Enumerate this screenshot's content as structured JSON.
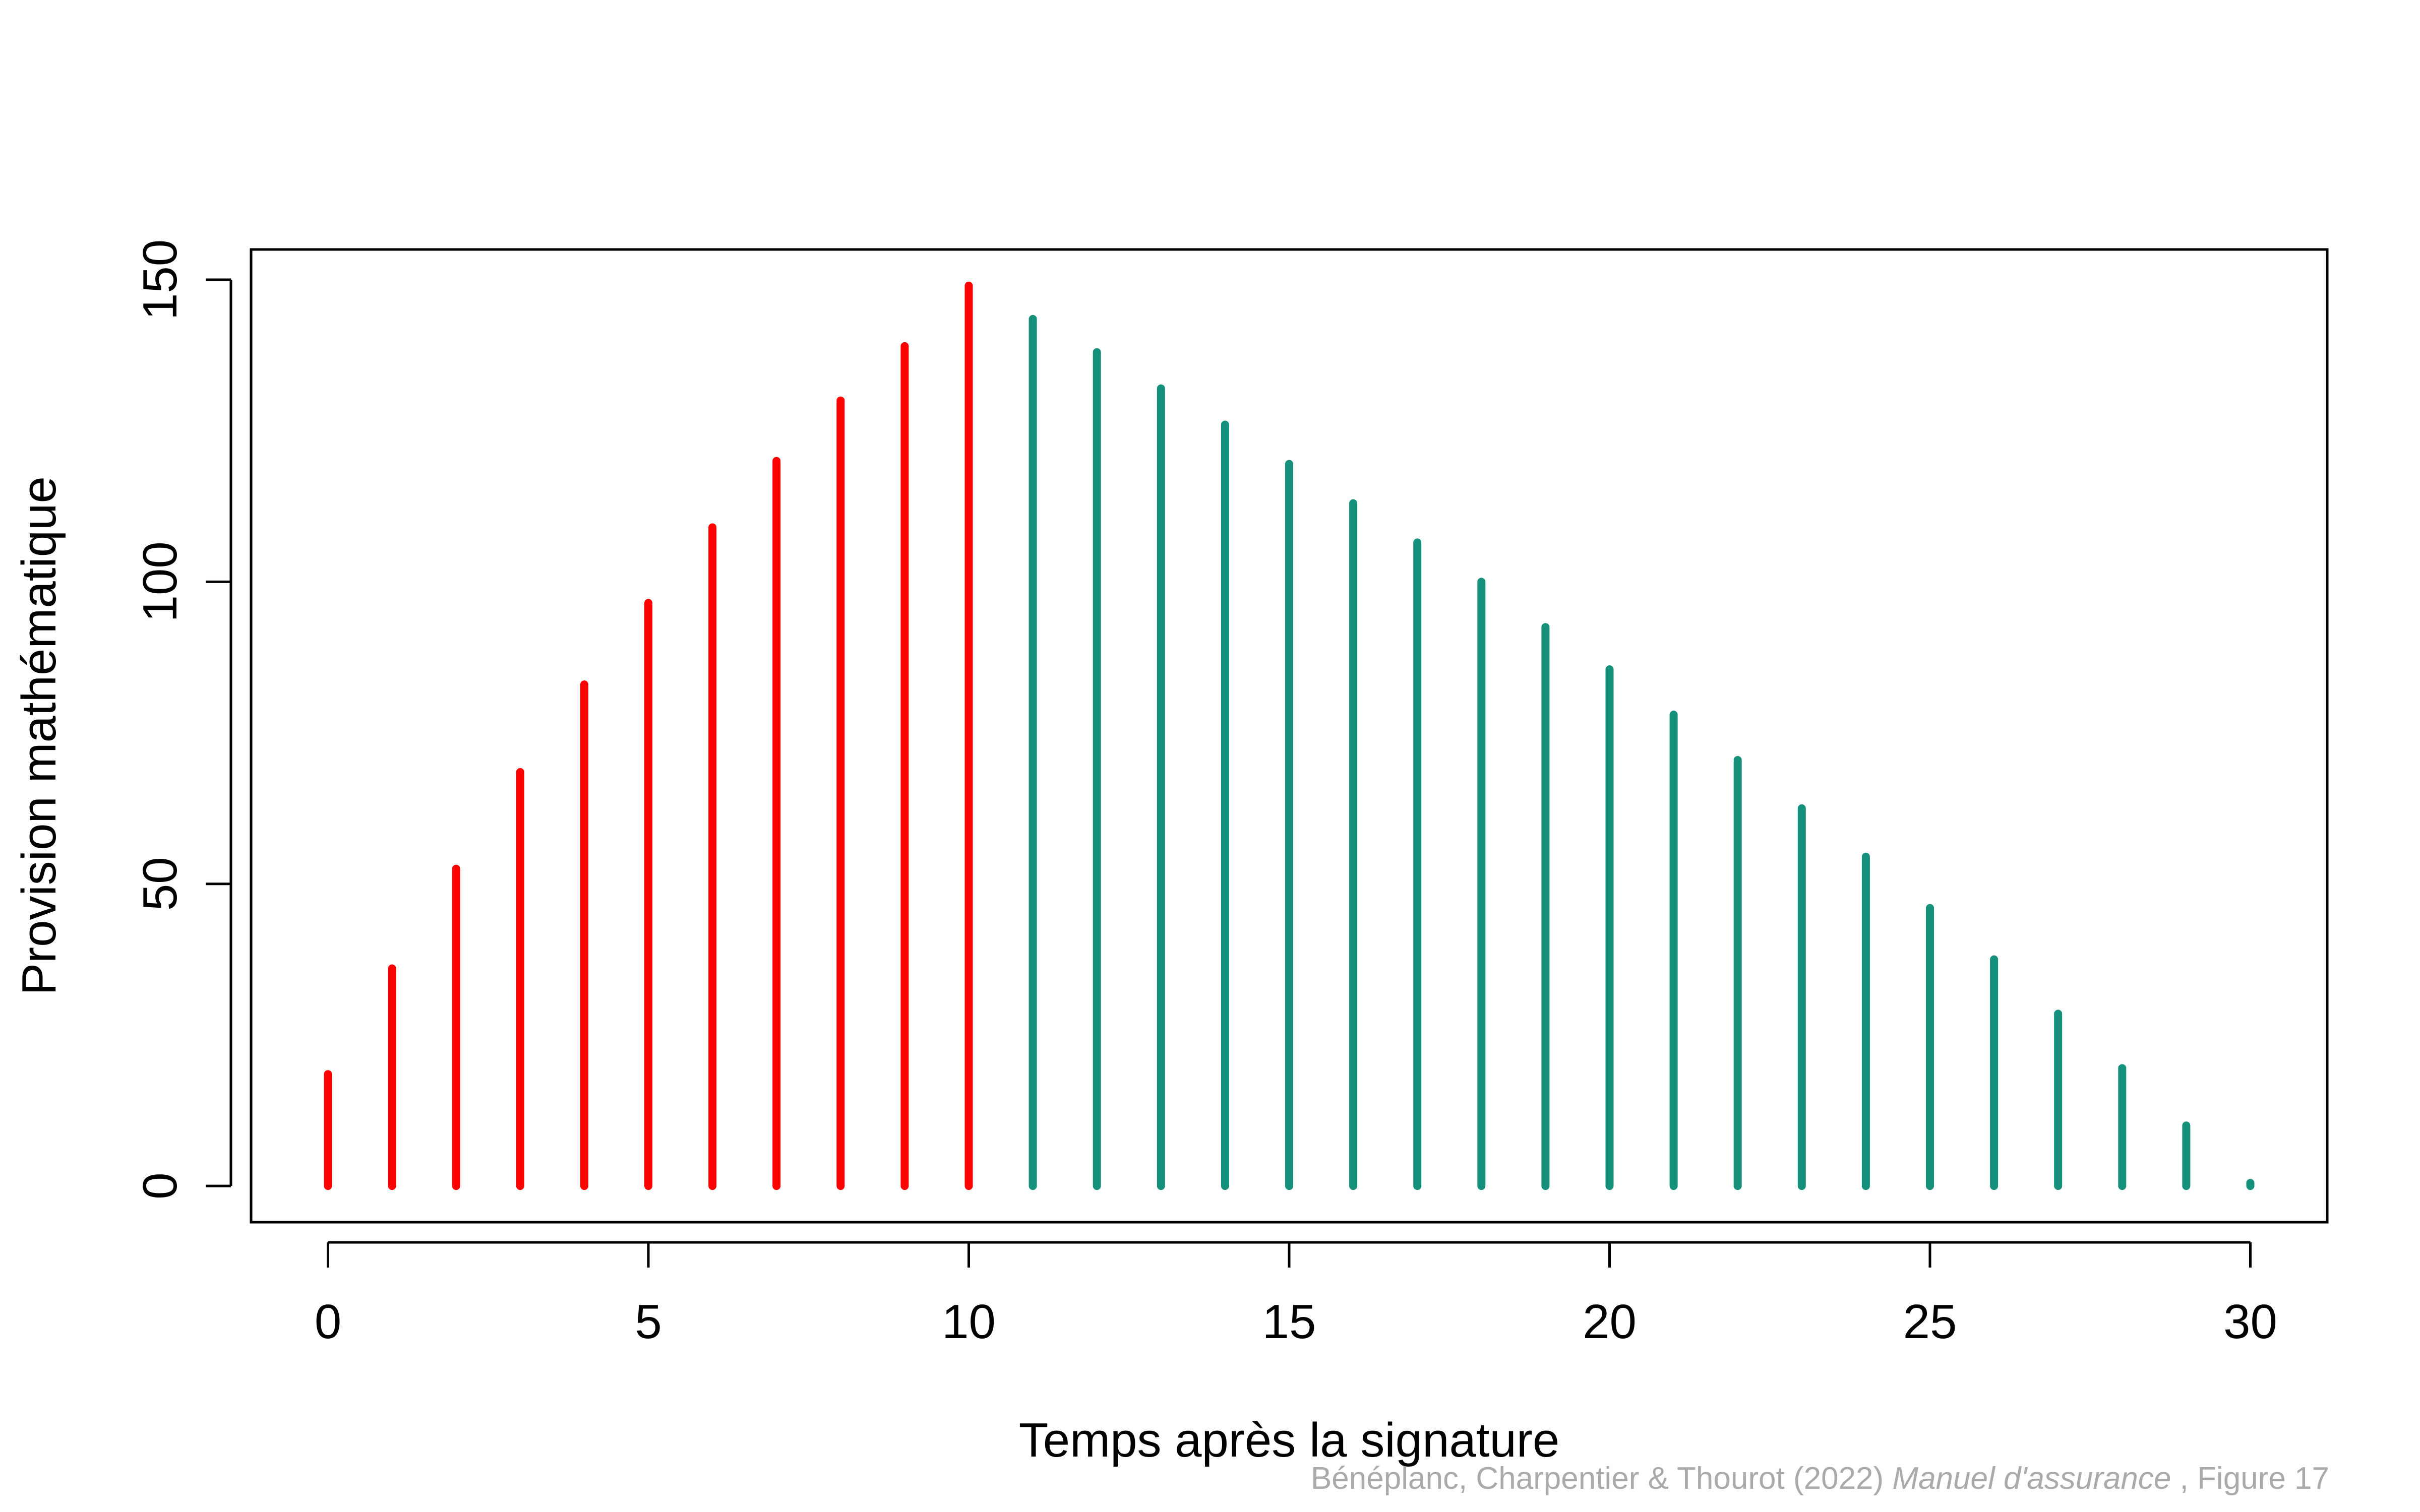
{
  "chart_data": {
    "type": "bar",
    "title": "",
    "xlabel": "Temps après la signature",
    "ylabel": "Provision mathématique",
    "xlim": [
      -1.2,
      31.2
    ],
    "ylim": [
      -6,
      155
    ],
    "x_ticks": [
      "0",
      "5",
      "10",
      "15",
      "20",
      "25",
      "30"
    ],
    "y_ticks": [
      "0",
      "50",
      "100",
      "150"
    ],
    "grid": false,
    "legend": "none",
    "x": [
      0,
      1,
      2,
      3,
      4,
      5,
      6,
      7,
      8,
      9,
      10,
      11,
      12,
      13,
      14,
      15,
      16,
      17,
      18,
      19,
      20,
      21,
      22,
      23,
      24,
      25,
      26,
      27,
      28,
      29,
      30
    ],
    "series": [
      {
        "color": "#ff0000",
        "x": [
          0,
          1,
          2,
          3,
          4,
          5,
          6,
          7,
          8,
          9,
          10
        ],
        "values": [
          18.5,
          36,
          52.5,
          68.5,
          83,
          96.5,
          109,
          120,
          130,
          139,
          149
        ]
      },
      {
        "color": "#15907a",
        "x": [
          11,
          12,
          13,
          14,
          15,
          16,
          17,
          18,
          19,
          20,
          21,
          22,
          23,
          24,
          25,
          26,
          27,
          28,
          29,
          30
        ],
        "values": [
          143.5,
          138,
          132,
          126,
          119.5,
          113,
          106.5,
          100,
          92.5,
          85.5,
          78,
          70.5,
          62.5,
          54.5,
          46,
          37.5,
          28.5,
          19.5,
          10,
          0.5
        ]
      }
    ]
  },
  "caption": {
    "authors": "Bénéplanc, Charpentier & Thourot (2022)",
    "book": "Manuel d'assurance",
    "figure": ", Figure 17"
  }
}
